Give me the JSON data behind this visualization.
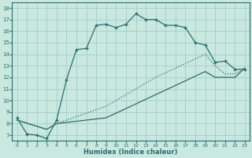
{
  "xlabel": "Humidex (Indice chaleur)",
  "bg_color": "#c8e8e0",
  "grid_color": "#a8cccc",
  "line_color": "#2d6e6e",
  "xlim": [
    -0.5,
    23.5
  ],
  "ylim": [
    6.5,
    18.5
  ],
  "xticks": [
    0,
    1,
    2,
    3,
    4,
    5,
    6,
    7,
    8,
    9,
    10,
    11,
    12,
    13,
    14,
    15,
    16,
    17,
    18,
    19,
    20,
    21,
    22,
    23
  ],
  "yticks": [
    7,
    8,
    9,
    10,
    11,
    12,
    13,
    14,
    15,
    16,
    17,
    18
  ],
  "line1_x": [
    0,
    1,
    2,
    3,
    4,
    5,
    6,
    7,
    8,
    9,
    10,
    11,
    12,
    13,
    14,
    15,
    16,
    17,
    18,
    19,
    20,
    21,
    22,
    23
  ],
  "line1_y": [
    8.5,
    7.1,
    7.0,
    6.7,
    8.3,
    11.8,
    14.4,
    14.5,
    16.5,
    16.6,
    16.3,
    16.6,
    17.5,
    17.0,
    17.0,
    16.5,
    16.5,
    16.3,
    15.0,
    14.8,
    13.3,
    13.4,
    12.7,
    12.7
  ],
  "line2_x": [
    0,
    3,
    4,
    9,
    14,
    19,
    20,
    21,
    22,
    23
  ],
  "line2_y": [
    8.3,
    7.5,
    8.0,
    9.5,
    12.0,
    14.0,
    13.0,
    12.3,
    12.3,
    12.8
  ],
  "line3_x": [
    0,
    3,
    4,
    9,
    14,
    19,
    20,
    21,
    22,
    23
  ],
  "line3_y": [
    8.3,
    7.5,
    8.0,
    8.5,
    10.5,
    12.5,
    12.0,
    12.0,
    12.0,
    12.8
  ]
}
